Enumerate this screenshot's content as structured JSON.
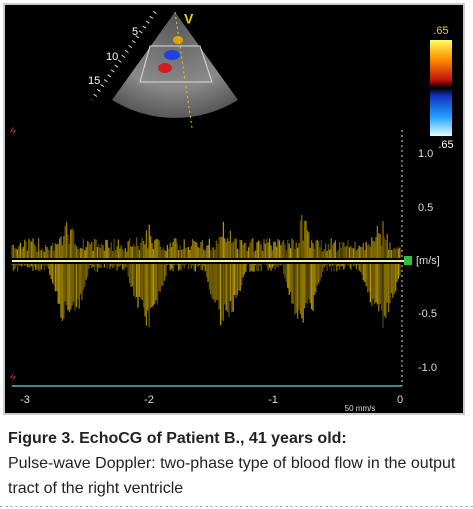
{
  "image": {
    "sector_depth_labels": [
      "5",
      "10",
      "15"
    ],
    "view_label": "V",
    "color_scale": {
      "top": ".65",
      "bottom": ".65"
    },
    "velocity_labels": [
      "1.0",
      "0.5",
      "[m/s]",
      "-0.5",
      "-1.0"
    ],
    "time_labels": [
      "-3",
      "-2",
      "-1",
      "0"
    ],
    "sweep_speed": "50 mm/s"
  },
  "caption": {
    "title": "Figure 3. EchoCG of Patient B., 41 years old:",
    "text": "Pulse-wave Doppler: two-phase type of blood flow in the output tract of the right ventricle"
  }
}
